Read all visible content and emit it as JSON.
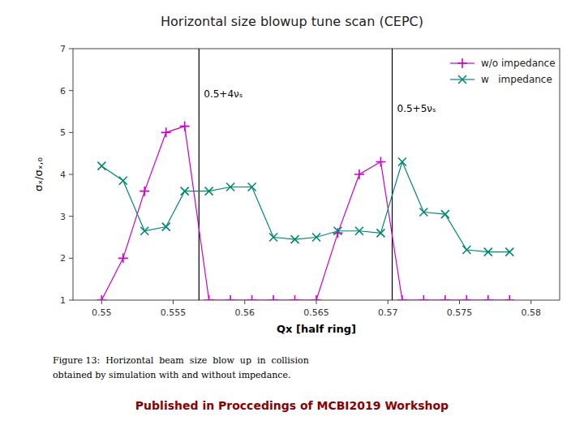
{
  "chart_data": {
    "type": "line",
    "title": "Horizontal size blowup tune scan (CEPC)",
    "x_label": "Qx [half ring]",
    "y_label": "σₓ/σₓ,₀",
    "xlim": [
      0.548,
      0.582
    ],
    "ylim": [
      1,
      7
    ],
    "xticks": [
      0.55,
      0.555,
      0.56,
      0.565,
      0.57,
      0.575,
      0.58
    ],
    "yticks": [
      1,
      2,
      3,
      4,
      5,
      6,
      7
    ],
    "grid": false,
    "legend": "upper right",
    "x": [
      0.55,
      0.5515,
      0.553,
      0.5545,
      0.5558,
      0.5575,
      0.559,
      0.5605,
      0.562,
      0.5635,
      0.565,
      0.5665,
      0.568,
      0.5695,
      0.571,
      0.5725,
      0.574,
      0.5755,
      0.577,
      0.5785
    ],
    "series": [
      {
        "name": "w/o impedance",
        "color": "#cc00cc",
        "marker": "plus",
        "values": [
          1.0,
          2.0,
          3.6,
          5.0,
          5.15,
          1.0,
          1.0,
          1.0,
          1.0,
          1.0,
          1.0,
          2.6,
          4.0,
          4.3,
          1.0,
          1.0,
          1.0,
          1.0,
          1.0,
          1.0
        ]
      },
      {
        "name": "w   impedance",
        "color": "#008870",
        "marker": "x",
        "values": [
          4.2,
          3.85,
          2.65,
          2.75,
          3.6,
          3.6,
          3.7,
          3.7,
          2.5,
          2.45,
          2.5,
          2.65,
          2.65,
          2.6,
          4.3,
          3.1,
          3.05,
          2.2,
          2.15,
          2.15
        ]
      }
    ],
    "annotations": [
      {
        "text": "0.5+4νₛ",
        "x": 0.5568
      },
      {
        "text": "0.5+5νₛ",
        "x": 0.5703
      }
    ],
    "captions": [
      "Figure 13:  Horizontal  beam  size  blow  up  in  collision",
      "obtained by simulation with and without impedance."
    ],
    "footer": {
      "text": "Published in Proccedings of MCBI2019 Workshop",
      "color": "#8b0000"
    }
  }
}
